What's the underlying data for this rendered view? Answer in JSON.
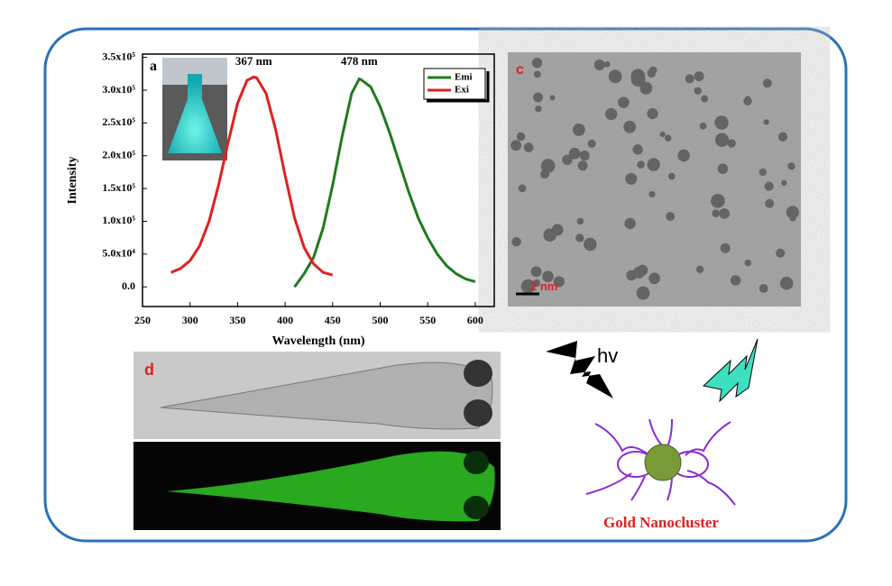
{
  "chart_data": {
    "type": "line",
    "x_label": "Wavelength (nm)",
    "y_label": "Intensity",
    "panel_label": "a",
    "annotations": [
      "367 nm",
      "478 nm"
    ],
    "xlim": [
      250,
      620
    ],
    "xticks": [
      250,
      300,
      350,
      400,
      450,
      500,
      550,
      600
    ],
    "ylim": [
      -30000,
      355000
    ],
    "yticks": [
      {
        "value": 0,
        "label": "0.0"
      },
      {
        "value": 50000,
        "label": "5.0x10⁴"
      },
      {
        "value": 100000,
        "label": "1.0x10⁵"
      },
      {
        "value": 150000,
        "label": "1.5x10⁵"
      },
      {
        "value": 200000,
        "label": "2.0x10⁵"
      },
      {
        "value": 250000,
        "label": "2.5x10⁵"
      },
      {
        "value": 300000,
        "label": "3.0x10⁵"
      },
      {
        "value": 350000,
        "label": "3.5x10⁵"
      }
    ],
    "legend": "upper right",
    "series": [
      {
        "name": "Emi",
        "color": "#1e7a1e",
        "x": [
          410,
          420,
          430,
          440,
          450,
          460,
          470,
          478,
          480,
          490,
          500,
          510,
          520,
          530,
          540,
          550,
          560,
          570,
          580,
          590,
          600
        ],
        "values": [
          0,
          20000,
          45000,
          90000,
          155000,
          230000,
          295000,
          317000,
          316000,
          305000,
          275000,
          235000,
          190000,
          145000,
          105000,
          75000,
          50000,
          32000,
          20000,
          12000,
          8000
        ]
      },
      {
        "name": "Exi",
        "color": "#e02020",
        "x": [
          280,
          290,
          300,
          310,
          320,
          330,
          340,
          350,
          360,
          367,
          370,
          380,
          390,
          400,
          410,
          420,
          430,
          440,
          450
        ],
        "values": [
          22000,
          28000,
          40000,
          62000,
          100000,
          155000,
          220000,
          280000,
          315000,
          320000,
          319000,
          295000,
          240000,
          170000,
          105000,
          60000,
          35000,
          22000,
          18000
        ]
      }
    ]
  },
  "panels": {
    "tem": {
      "label": "c",
      "scale_bar": "2 nm"
    },
    "fish": {
      "label": "d"
    },
    "scheme": {
      "light": "hv",
      "caption": "Gold Nanocluster"
    }
  }
}
